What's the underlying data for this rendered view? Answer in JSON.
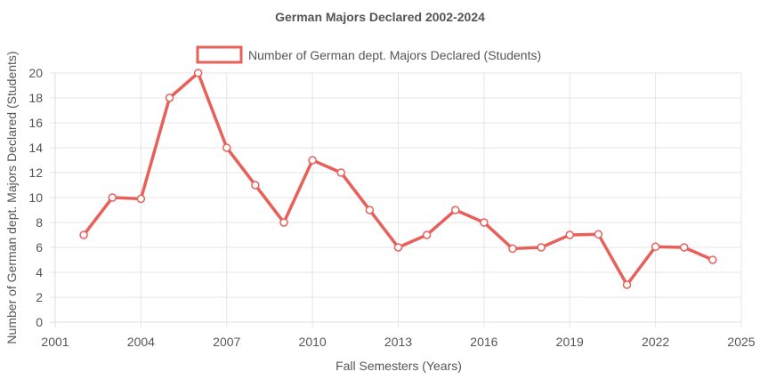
{
  "chart_data": {
    "type": "line",
    "title": "German Majors Declared 2002-2024",
    "xlabel": "Fall Semesters (Years)",
    "ylabel": "Number of German dept. Majors Declared (Students)",
    "xlim": [
      2001,
      2025
    ],
    "ylim": [
      0,
      20
    ],
    "x_ticks": [
      2001,
      2004,
      2007,
      2010,
      2013,
      2016,
      2019,
      2022,
      2025
    ],
    "y_ticks": [
      0,
      2,
      4,
      6,
      8,
      10,
      12,
      14,
      16,
      18,
      20
    ],
    "grid": true,
    "legend_position": "top-center",
    "series": [
      {
        "name": "Number of German dept. Majors Declared (Students)",
        "color": "#e8605a",
        "x": [
          2002,
          2003,
          2004,
          2005,
          2006,
          2007,
          2008,
          2009,
          2010,
          2011,
          2012,
          2013,
          2014,
          2015,
          2016,
          2017,
          2018,
          2019,
          2020,
          2021,
          2022,
          2023,
          2024
        ],
        "y": [
          7,
          10,
          9.9,
          18,
          20,
          14,
          11,
          8,
          13,
          12,
          9,
          6,
          7,
          9,
          8,
          5.9,
          6,
          7,
          7.05,
          3,
          6.05,
          6,
          5
        ]
      }
    ]
  }
}
